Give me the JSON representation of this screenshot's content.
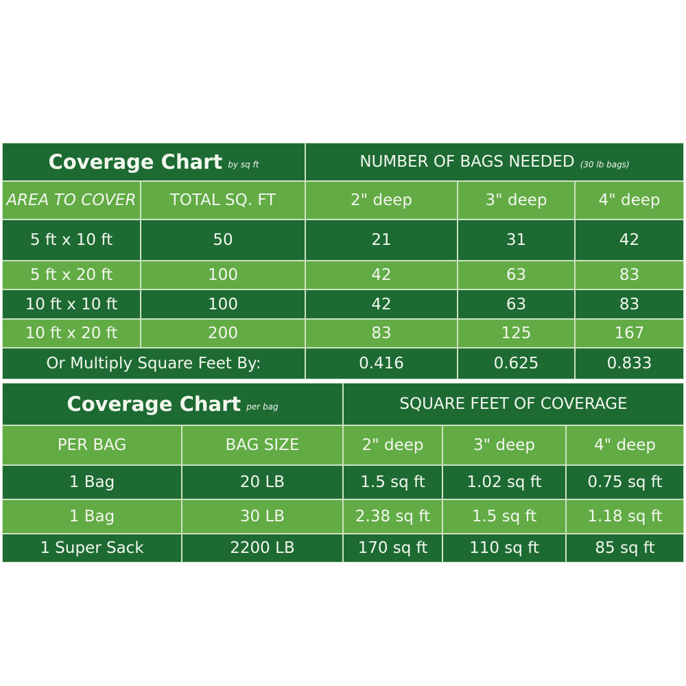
{
  "tables": [
    {
      "title": "Coverage Chart",
      "title_note": "by sq ft",
      "group_header": "NUMBER OF BAGS NEEDED",
      "group_note": "(30 lb bags)",
      "columns": [
        "AREA TO COVER",
        "TOTAL SQ. FT",
        "2\" deep",
        "3\" deep",
        "4\" deep"
      ],
      "rows": [
        [
          "5 ft x 10 ft",
          "50",
          "21",
          "31",
          "42"
        ],
        [
          "5 ft x 20 ft",
          "100",
          "42",
          "63",
          "83"
        ],
        [
          "10 ft x 10 ft",
          "100",
          "42",
          "63",
          "83"
        ],
        [
          "10 ft x 20 ft",
          "200",
          "83",
          "125",
          "167"
        ]
      ],
      "footer": {
        "label": "Or Multiply Square Feet By:",
        "values": [
          "0.416",
          "0.625",
          "0.833"
        ]
      }
    },
    {
      "title": "Coverage Chart",
      "title_note": "per bag",
      "group_header": "SQUARE FEET OF COVERAGE",
      "columns": [
        "PER BAG",
        "BAG SIZE",
        "2\" deep",
        "3\" deep",
        "4\" deep"
      ],
      "rows": [
        [
          "1 Bag",
          "20 LB",
          "1.5 sq ft",
          "1.02 sq ft",
          "0.75 sq ft"
        ],
        [
          "1 Bag",
          "30 LB",
          "2.38 sq ft",
          "1.5 sq ft",
          "1.18 sq ft"
        ],
        [
          "1 Super Sack",
          "2200 LB",
          "170 sq ft",
          "110 sq ft",
          "85 sq ft"
        ]
      ]
    }
  ]
}
